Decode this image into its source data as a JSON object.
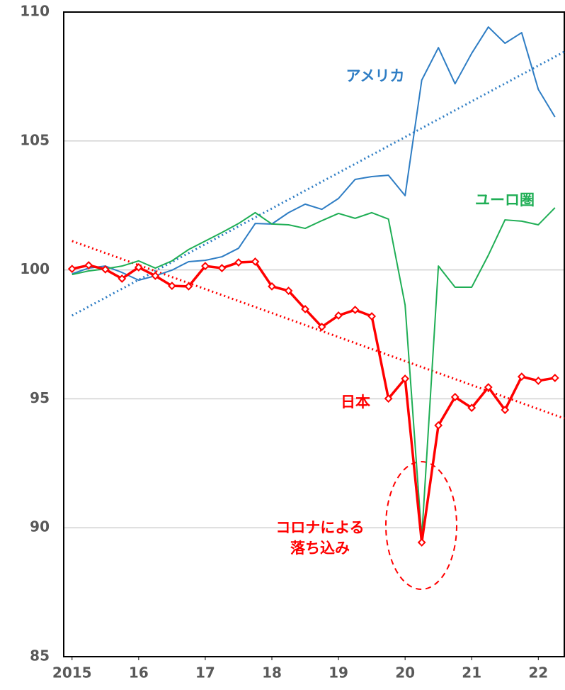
{
  "chart_data": {
    "type": "line",
    "x": [
      2015,
      2015.25,
      2015.5,
      2015.75,
      2016,
      2016.25,
      2016.5,
      2016.75,
      2017,
      2017.25,
      2017.5,
      2017.75,
      2018,
      2018.25,
      2018.5,
      2018.75,
      2019,
      2019.25,
      2019.5,
      2019.75,
      2020,
      2020.25,
      2020.5,
      2020.75,
      2021,
      2021.25,
      2021.5,
      2021.75,
      2022,
      2022.25
    ],
    "series": [
      {
        "name": "アメリカ",
        "color": "#2e7dc4",
        "markers": false,
        "values": [
          99.85,
          100.07,
          100.15,
          99.9,
          99.6,
          99.77,
          99.99,
          100.32,
          100.37,
          100.51,
          100.84,
          101.8,
          101.78,
          102.22,
          102.55,
          102.35,
          102.77,
          103.51,
          103.62,
          103.67,
          102.88,
          107.36,
          108.62,
          107.22,
          108.4,
          109.42,
          108.79,
          109.2,
          107.0,
          105.93
        ]
      },
      {
        "name": "ユーロ圏",
        "color": "#1fae55",
        "markers": false,
        "values": [
          99.82,
          99.96,
          100.04,
          100.15,
          100.35,
          100.07,
          100.35,
          100.79,
          101.12,
          101.45,
          101.8,
          102.22,
          101.78,
          101.75,
          101.61,
          101.91,
          102.19,
          102.0,
          102.22,
          101.97,
          98.64,
          89.62,
          100.15,
          99.33,
          99.33,
          100.57,
          101.94,
          101.89,
          101.75,
          102.41
        ]
      },
      {
        "name": "日本",
        "color": "#ff0000",
        "markers": true,
        "values": [
          100.04,
          100.18,
          100.02,
          99.66,
          100.1,
          99.77,
          99.38,
          99.36,
          100.15,
          100.07,
          100.29,
          100.32,
          99.36,
          99.19,
          98.48,
          97.79,
          98.23,
          98.45,
          98.2,
          95.01,
          95.78,
          89.43,
          93.97,
          95.07,
          94.65,
          95.45,
          94.57,
          95.86,
          95.7,
          95.81
        ]
      }
    ],
    "trendlines": [
      {
        "color": "#2e7dc4",
        "x": [
          2015,
          2022.39
        ],
        "values": [
          98.23,
          108.46
        ]
      },
      {
        "color": "#ff0000",
        "x": [
          2015,
          2022.39
        ],
        "values": [
          101.12,
          94.24
        ]
      }
    ],
    "annotation": [
      "コロナによる",
      "落ち込み"
    ],
    "xlim": [
      2014.875,
      2022.39
    ],
    "xticks": [
      2015,
      {
        "value": 2016,
        "label": "16"
      },
      {
        "value": 2017,
        "label": "17"
      },
      {
        "value": 2018,
        "label": "18"
      },
      {
        "value": 2019,
        "label": "19"
      },
      {
        "value": 2020,
        "label": "20"
      },
      {
        "value": 2021,
        "label": "21"
      },
      {
        "value": 2022,
        "label": "22"
      }
    ],
    "ylim": [
      85,
      110
    ],
    "yticks": [
      85,
      90,
      95,
      100,
      105,
      110
    ],
    "grid": true
  }
}
